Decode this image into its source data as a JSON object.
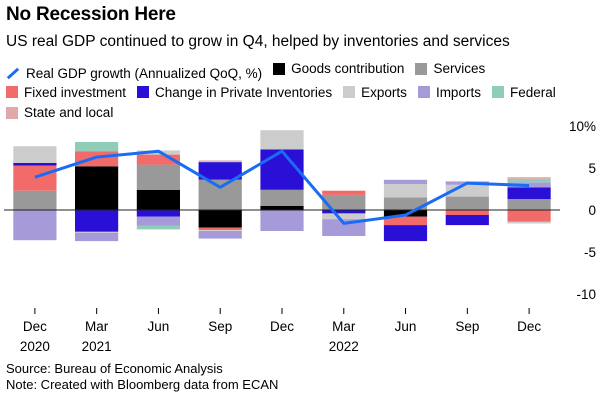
{
  "title": "No Recession Here",
  "subtitle": "US real GDP continued to grow in Q4, helped by inventories and services",
  "legend": [
    {
      "label": "Real GDP growth (Annualized QoQ, %)",
      "type": "line",
      "color": "#1a6cf5",
      "icon": "line-icon"
    },
    {
      "label": "Goods contribution",
      "type": "box",
      "color": "#000000"
    },
    {
      "label": "Services",
      "type": "box",
      "color": "#999999"
    },
    {
      "label": "Fixed investment",
      "type": "box",
      "color": "#f26b6b"
    },
    {
      "label": "Change in Private Inventories",
      "type": "box",
      "color": "#2a10d6"
    },
    {
      "label": "Exports",
      "type": "box",
      "color": "#cccccc"
    },
    {
      "label": "Imports",
      "type": "box",
      "color": "#a79ad9"
    },
    {
      "label": "Federal",
      "type": "box",
      "color": "#8fcdb8"
    },
    {
      "label": "State and local",
      "type": "box",
      "color": "#e0a8a8"
    }
  ],
  "source_lines": [
    "Source: Bureau of Economic Analysis",
    "Note: Created with Bloomberg data from ECAN"
  ],
  "chart_data": {
    "type": "bar",
    "stacked": true,
    "categories": [
      "Dec 2020",
      "Mar 2021",
      "Jun",
      "Sep",
      "Dec",
      "Mar 2022",
      "Jun",
      "Sep",
      "Dec"
    ],
    "x_tick_lines": [
      [
        "Dec",
        "2020"
      ],
      [
        "Mar",
        "2021"
      ],
      [
        "Jun",
        ""
      ],
      [
        "Sep",
        ""
      ],
      [
        "Dec",
        ""
      ],
      [
        "Mar",
        "2022"
      ],
      [
        "Jun",
        ""
      ],
      [
        "Sep",
        ""
      ],
      [
        "Dec",
        ""
      ]
    ],
    "ylim": [
      -10,
      10
    ],
    "yticks": [
      10,
      5,
      0,
      -5,
      -10
    ],
    "ytick_labels": [
      "10%",
      "5",
      "0",
      "-5",
      "-10"
    ],
    "grid": false,
    "zero_line": true,
    "series": [
      {
        "name": "Goods contribution",
        "color": "#000000",
        "values": [
          0,
          5.2,
          2.4,
          -2.1,
          0.5,
          0,
          -0.8,
          0,
          0
        ]
      },
      {
        "name": "Services",
        "color": "#999999",
        "values": [
          2.3,
          0,
          3.0,
          3.6,
          1.9,
          1.8,
          1.5,
          1.6,
          1.3
        ]
      },
      {
        "name": "Fixed investment",
        "color": "#f26b6b",
        "values": [
          3.0,
          1.8,
          1.2,
          -0.3,
          0,
          0.5,
          -1.0,
          -0.6,
          -1.4
        ]
      },
      {
        "name": "Change in Private Inventories",
        "color": "#2a10d6",
        "values": [
          0.3,
          -2.6,
          -0.8,
          2.1,
          4.8,
          -0.4,
          -1.9,
          -1.2,
          1.4
        ]
      },
      {
        "name": "Exports",
        "color": "#cccccc",
        "values": [
          2.0,
          -0.1,
          0.5,
          -0.1,
          2.3,
          -0.7,
          1.6,
          1.4,
          -0.2
        ]
      },
      {
        "name": "Imports",
        "color": "#a79ad9",
        "values": [
          -3.6,
          -1.0,
          -1.1,
          -0.9,
          -2.5,
          -2.0,
          0.5,
          0.4,
          0.6
        ]
      },
      {
        "name": "Federal",
        "color": "#8fcdb8",
        "values": [
          0,
          1.1,
          -0.4,
          0.1,
          0,
          0,
          0,
          0,
          0.4
        ]
      },
      {
        "name": "State and local",
        "color": "#e0a8a8",
        "values": [
          0,
          0,
          0,
          0.1,
          0,
          0,
          0,
          0,
          0.2
        ]
      }
    ],
    "line": {
      "name": "Real GDP growth (Annualized QoQ, %)",
      "color": "#1a6cf5",
      "values": [
        3.9,
        6.3,
        7.0,
        2.7,
        7.0,
        -1.6,
        -0.6,
        3.2,
        2.9
      ]
    }
  }
}
